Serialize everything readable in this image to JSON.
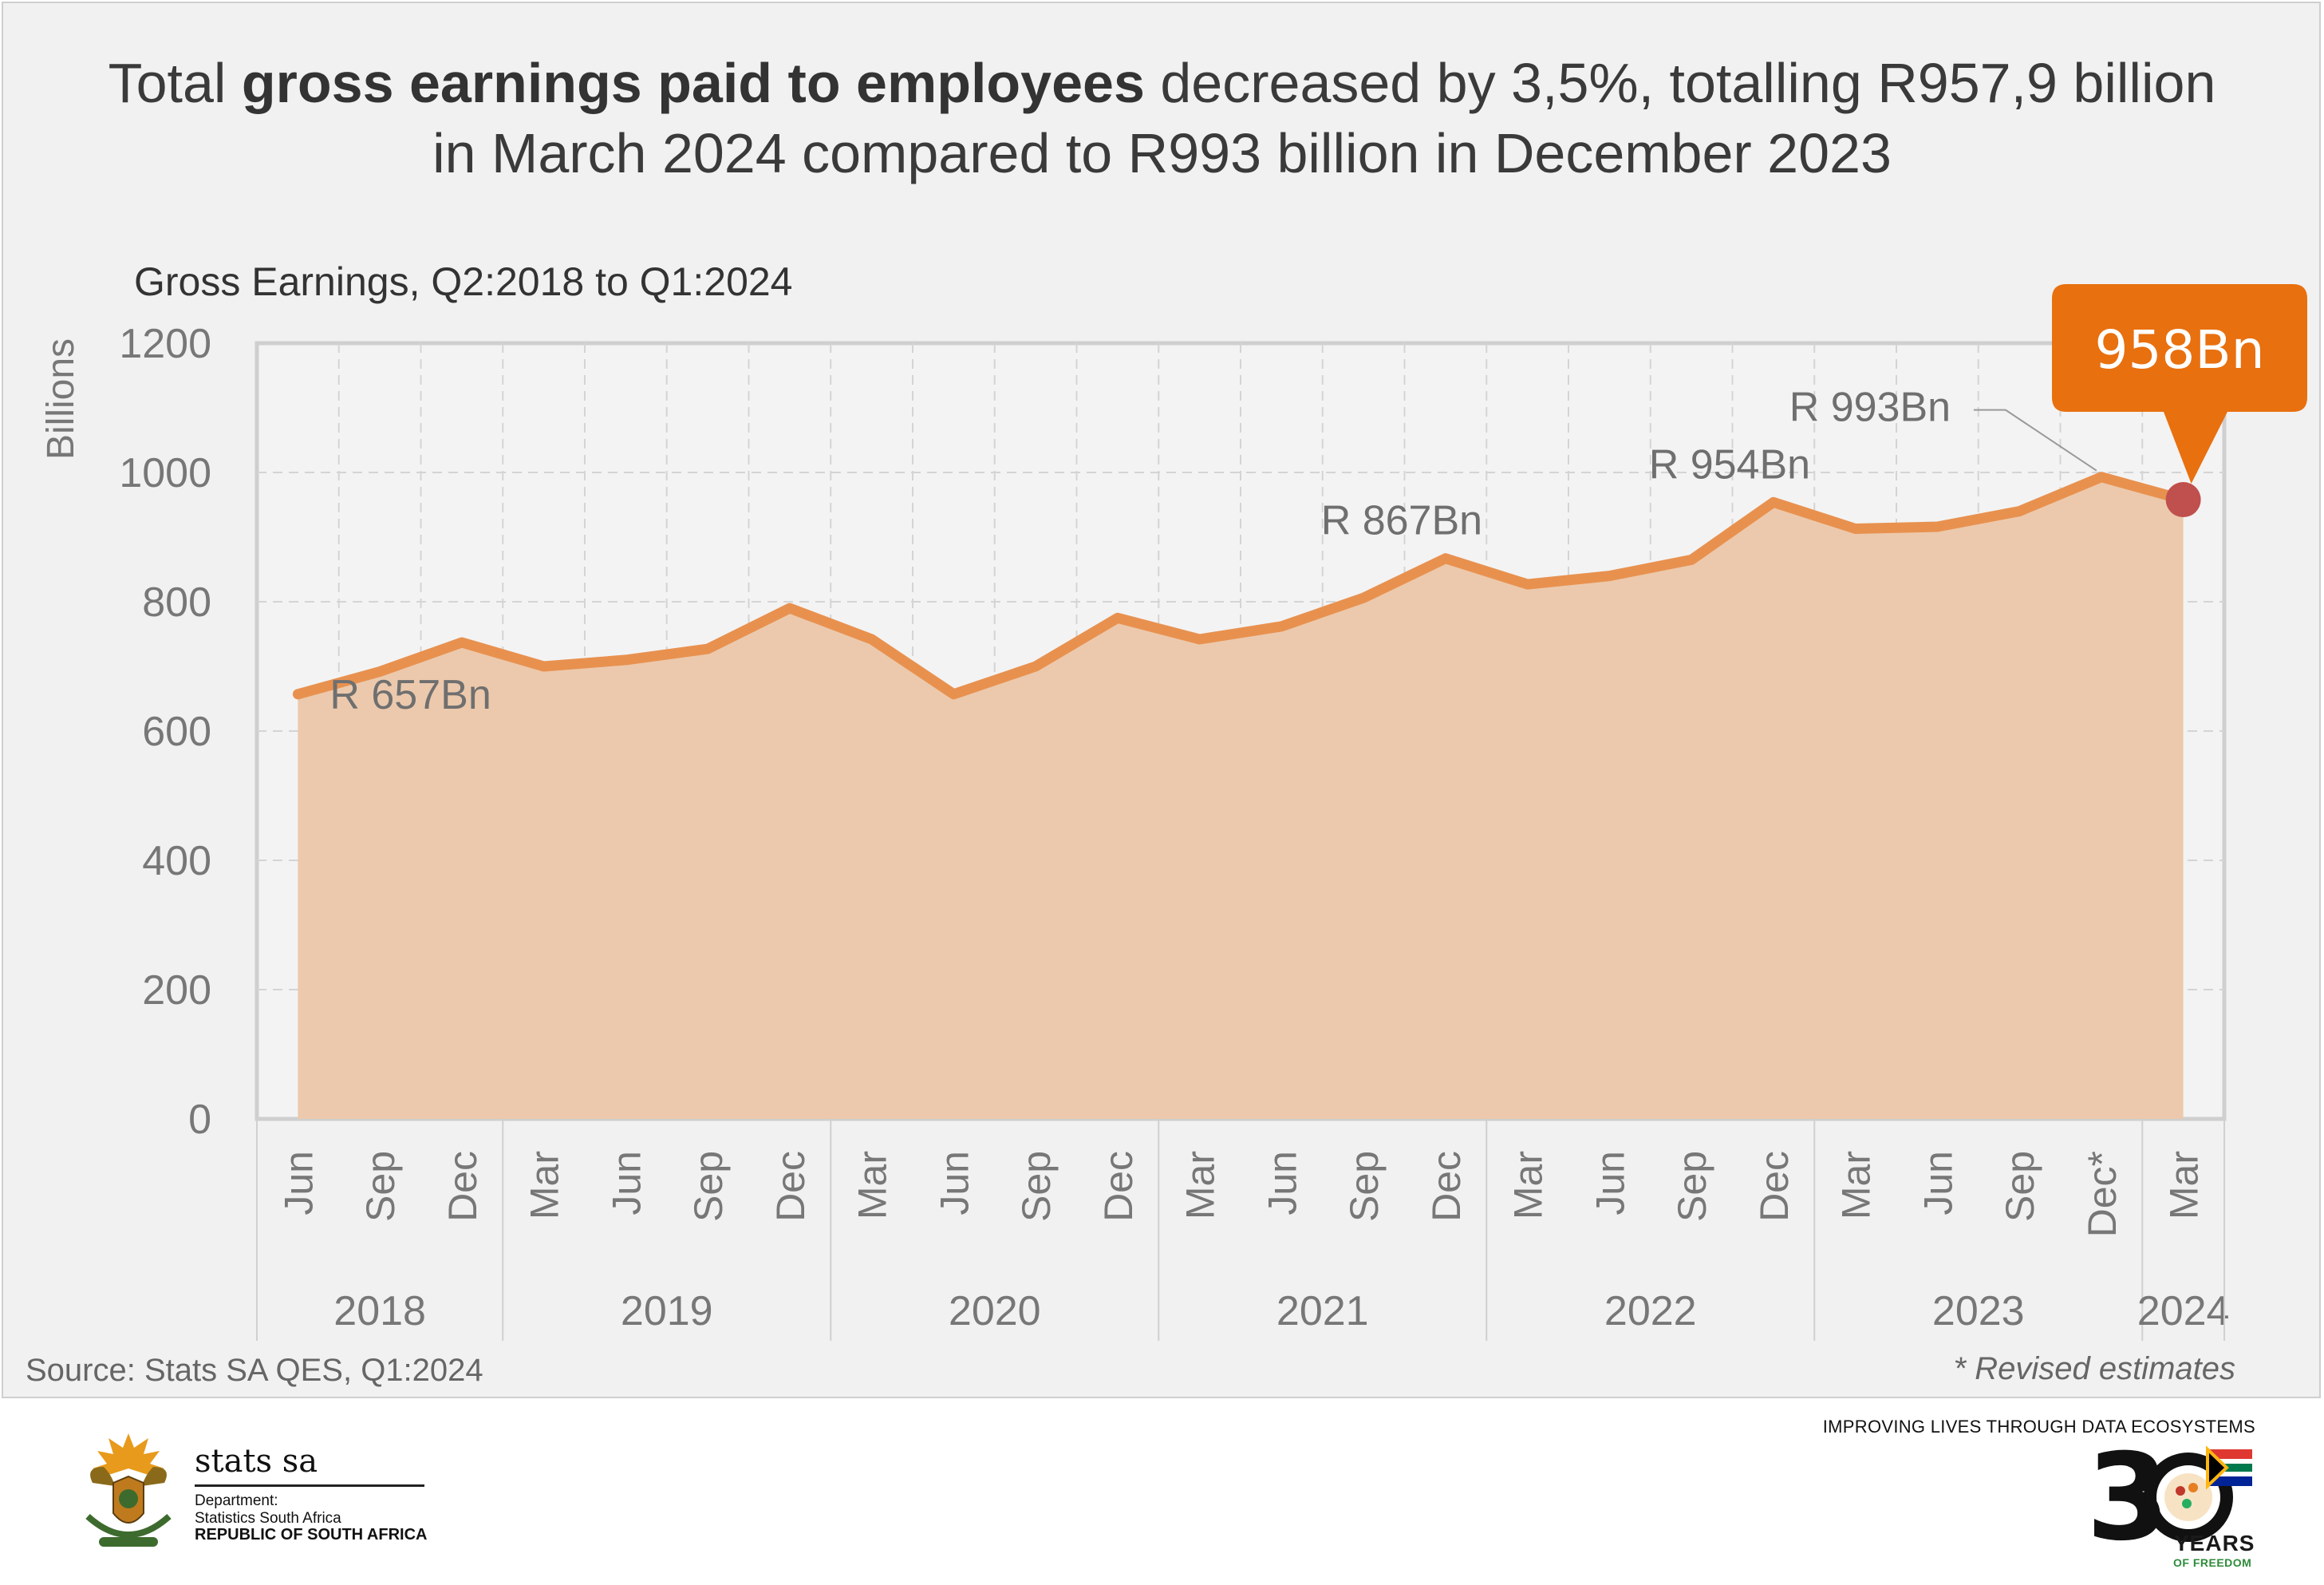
{
  "headline": {
    "part1": "Total ",
    "bold": "gross earnings paid to employees",
    "part2": " decreased by 3,5%, totalling R957,9 billion",
    "line2": "in March 2024 compared to R993 billion in December 2023"
  },
  "colors": {
    "line": "#e8914f",
    "fill": "#ecc9ac",
    "callout": "#e8700f",
    "endpoint": "#c0504d",
    "text": "#666666"
  },
  "chart_data": {
    "type": "area",
    "title": "Gross Earnings, Q2:2018 to Q1:2024",
    "ylabel": "Billions",
    "ylim": [
      0,
      1200
    ],
    "yticks": [
      0,
      200,
      400,
      600,
      800,
      1000,
      1200
    ],
    "grid": true,
    "categories": [
      "Jun",
      "Sep",
      "Dec",
      "Mar",
      "Jun",
      "Sep",
      "Dec",
      "Mar",
      "Jun",
      "Sep",
      "Dec",
      "Mar",
      "Jun",
      "Sep",
      "Dec",
      "Mar",
      "Jun",
      "Sep",
      "Dec",
      "Mar",
      "Jun",
      "Sep",
      "Dec*",
      "Mar"
    ],
    "years": [
      {
        "label": "2018",
        "span": 3
      },
      {
        "label": "2019",
        "span": 4
      },
      {
        "label": "2020",
        "span": 4
      },
      {
        "label": "2021",
        "span": 4
      },
      {
        "label": "2022",
        "span": 4
      },
      {
        "label": "2023",
        "span": 4
      },
      {
        "label": "2024",
        "span": 1
      }
    ],
    "series": [
      {
        "values": [
          657,
          692,
          737,
          700,
          710,
          727,
          790,
          742,
          657,
          700,
          775,
          742,
          762,
          806,
          867,
          827,
          840,
          865,
          954,
          913,
          916,
          940,
          993,
          958
        ]
      }
    ],
    "annotations": [
      {
        "index": 0,
        "text": "R 657Bn"
      },
      {
        "index": 14,
        "text": "R 867Bn"
      },
      {
        "index": 18,
        "text": "R 954Bn"
      },
      {
        "index": 22,
        "text": "R 993Bn"
      }
    ],
    "callout": {
      "index": 23,
      "text": "958Bn"
    }
  },
  "source": "Source: Stats SA QES, Q1:2024",
  "note": "* Revised estimates",
  "footer": {
    "org_name": "stats sa",
    "dept_line1": "Department:",
    "dept_line2": "Statistics South Africa",
    "country": "REPUBLIC OF SOUTH AFRICA",
    "tagline": "IMPROVING LIVES THROUGH DATA ECOSYSTEMS",
    "years_label": "YEARS",
    "freedom_label": "OF FREEDOM"
  }
}
